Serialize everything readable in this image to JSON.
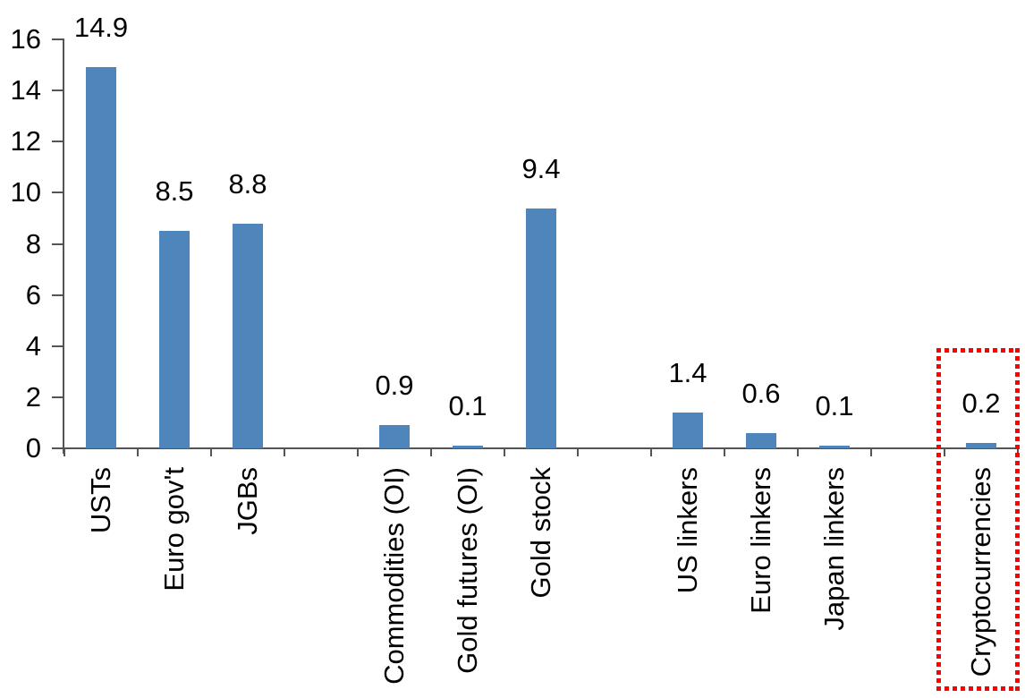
{
  "chart_data": {
    "type": "bar",
    "title": "",
    "xlabel": "",
    "ylabel": "",
    "categories": [
      "USTs",
      "Euro gov't",
      "JGBs",
      "Commodities (OI)",
      "Gold futures (OI)",
      "Gold stock",
      "US linkers",
      "Euro linkers",
      "Japan linkers",
      "Cryptocurrencies"
    ],
    "values": [
      14.9,
      8.5,
      8.8,
      0.9,
      0.1,
      9.4,
      1.4,
      0.6,
      0.1,
      0.2
    ],
    "data_labels": [
      "14.9",
      "8.5",
      "8.8",
      "0.9",
      "0.1",
      "9.4",
      "1.4",
      "0.6",
      "0.1",
      "0.2"
    ],
    "groups": [
      [
        "USTs",
        "Euro gov't",
        "JGBs"
      ],
      [
        "Commodities (OI)",
        "Gold futures (OI)",
        "Gold stock"
      ],
      [
        "US linkers",
        "Euro linkers",
        "Japan linkers"
      ],
      [
        "Cryptocurrencies"
      ]
    ],
    "ylim": [
      0,
      16
    ],
    "yticks": [
      0,
      2,
      4,
      6,
      8,
      10,
      12,
      14,
      16
    ],
    "grid": false,
    "legend": "none",
    "bar_color": "#4E86BC",
    "axis_color": "#545454",
    "text_color": "#000000",
    "highlight": {
      "category": "Cryptocurrencies",
      "border_color": "#FF0000",
      "border_style": "dotted"
    }
  }
}
